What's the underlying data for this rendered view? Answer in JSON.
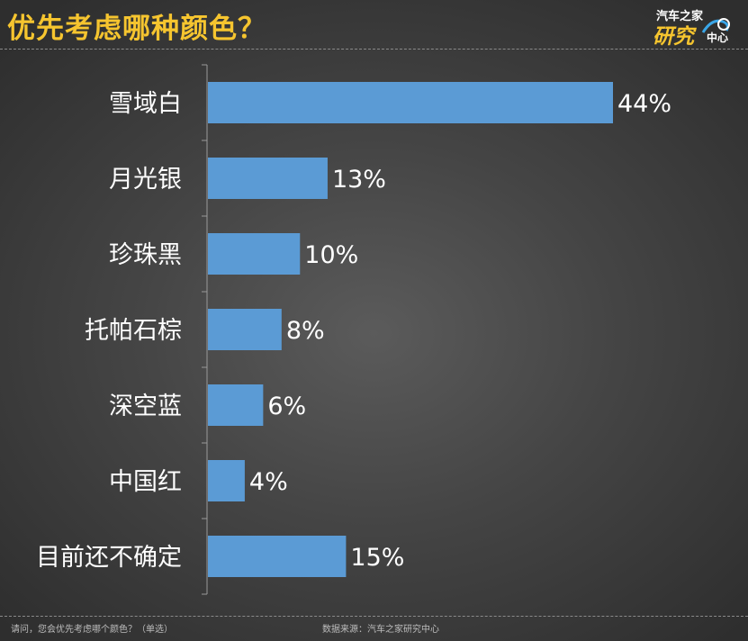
{
  "header": {
    "title": "优先考虑哪种颜色？",
    "logo": {
      "line1": "汽车之家",
      "line2": "研究",
      "line3": "中心"
    }
  },
  "footer": {
    "question": "请问，您会优先考虑哪个颜色？（单选）",
    "source": "数据来源：汽车之家研究中心"
  },
  "chart_data": {
    "type": "bar",
    "orientation": "horizontal",
    "title": "优先考虑哪种颜色？",
    "categories": [
      "雪域白",
      "月光银",
      "珍珠黑",
      "托帕石棕",
      "深空蓝",
      "中国红",
      "目前还不确定"
    ],
    "values": [
      44,
      13,
      10,
      8,
      6,
      4,
      15
    ],
    "value_labels": [
      "44%",
      "13%",
      "10%",
      "8%",
      "6%",
      "4%",
      "15%"
    ],
    "unit": "%",
    "xlim": [
      0,
      100
    ],
    "grid": false,
    "legend": "none",
    "bar_color": "#5b9bd5",
    "label_color": "#ffffff"
  }
}
